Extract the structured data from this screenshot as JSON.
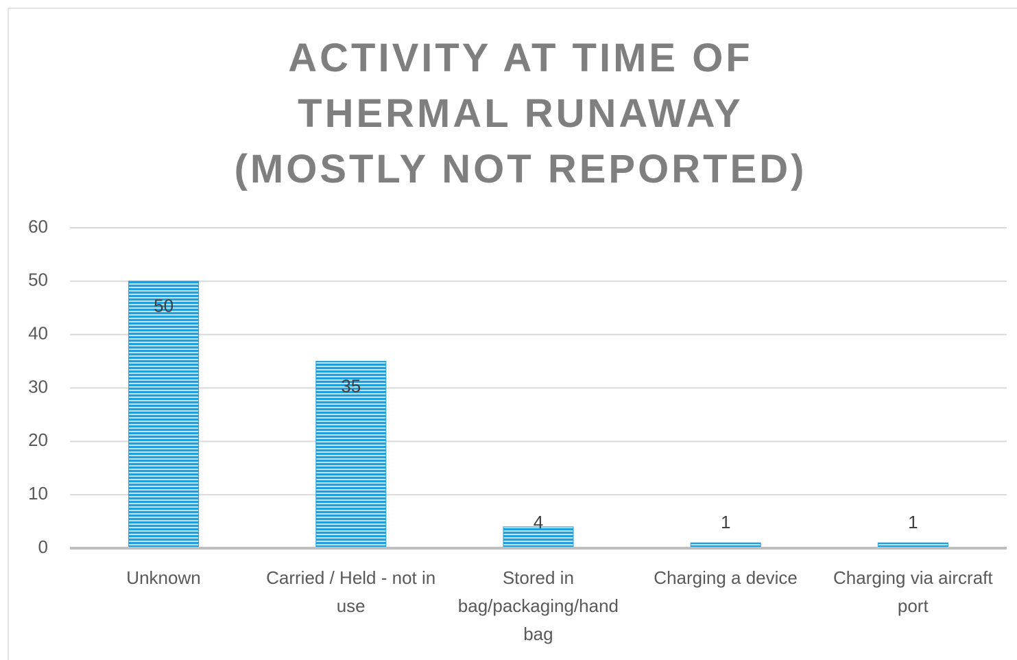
{
  "chart_data": {
    "type": "bar",
    "title": "ACTIVITY AT TIME OF THERMAL RUNAWAY (MOSTLY NOT REPORTED)",
    "categories": [
      "Unknown",
      "Carried / Held - not in use",
      "Stored in bag/packaging/hand bag",
      "Charging a device",
      "Charging via aircraft port"
    ],
    "values": [
      50,
      35,
      4,
      1,
      1
    ],
    "color": "#1f9fdb",
    "ylim": [
      0,
      60
    ],
    "yticks": [
      0,
      10,
      20,
      30,
      40,
      50,
      60
    ],
    "grid": true
  }
}
